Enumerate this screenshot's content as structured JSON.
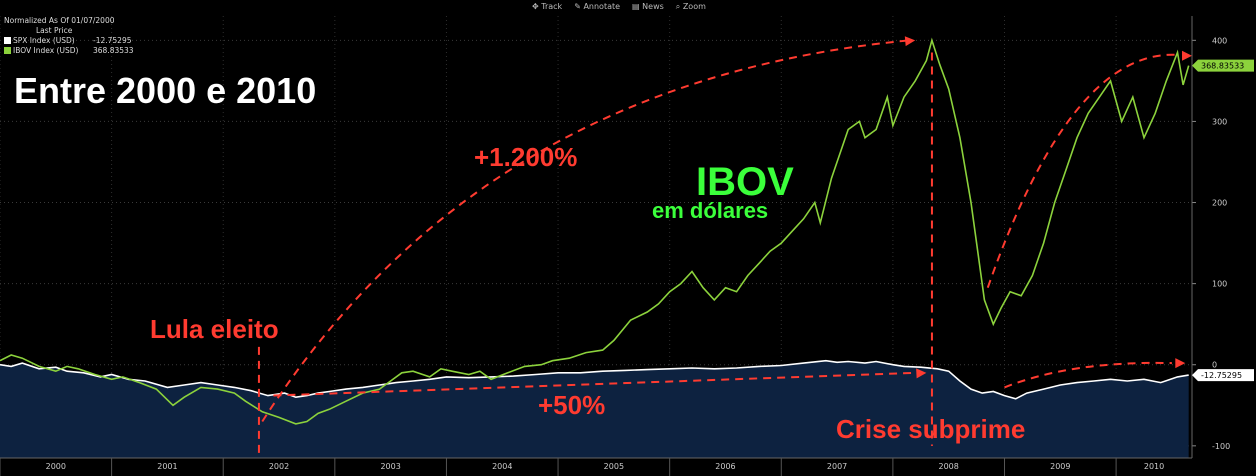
{
  "toolbar": {
    "track": "Track",
    "annotate": "Annotate",
    "news": "News",
    "zoom": "Zoom"
  },
  "legend": {
    "header1": "Normalized As Of 01/07/2000",
    "header2": "Last Price",
    "items": [
      {
        "name": "SPX Index (USD)",
        "value": "-12.75295",
        "color": "#ffffff"
      },
      {
        "name": "IBOV Index (USD)",
        "value": "368.83533",
        "color": "#8cd23c"
      }
    ]
  },
  "annotations": {
    "headline": "Entre 2000 e 2010",
    "ibov_gain": "+1.200%",
    "ibov_title": "IBOV",
    "ibov_subtitle": "em dólares",
    "lula": "Lula eleito",
    "spx_gain": "+50%",
    "crisis": "Crise subprime"
  },
  "colors": {
    "ibov": "#8cd23c",
    "spx": "#ffffff",
    "area": "#0d2240",
    "arrow": "#ff3b30"
  },
  "chart_data": {
    "type": "line",
    "ylim": [
      -115,
      430
    ],
    "xlim": [
      2000.0,
      2010.68
    ],
    "yticks": [
      -100,
      0,
      100,
      200,
      300,
      400
    ],
    "xticks": [
      "2000",
      "2001",
      "2002",
      "2003",
      "2004",
      "2005",
      "2006",
      "2007",
      "2008",
      "2009",
      "2010"
    ],
    "last_labels": {
      "ibov": "368.83533",
      "spx": "-12.75295"
    },
    "grid": true,
    "series": [
      {
        "name": "IBOV Index (USD)",
        "color": "#8cd23c",
        "points": [
          [
            2000.0,
            5
          ],
          [
            2000.1,
            12
          ],
          [
            2000.2,
            8
          ],
          [
            2000.35,
            -2
          ],
          [
            2000.5,
            -8
          ],
          [
            2000.6,
            -2
          ],
          [
            2000.7,
            -5
          ],
          [
            2000.85,
            -12
          ],
          [
            2001.0,
            -18
          ],
          [
            2001.1,
            -15
          ],
          [
            2001.25,
            -22
          ],
          [
            2001.4,
            -30
          ],
          [
            2001.55,
            -50
          ],
          [
            2001.65,
            -40
          ],
          [
            2001.8,
            -28
          ],
          [
            2001.95,
            -30
          ],
          [
            2002.1,
            -35
          ],
          [
            2002.2,
            -45
          ],
          [
            2002.35,
            -58
          ],
          [
            2002.5,
            -65
          ],
          [
            2002.65,
            -73
          ],
          [
            2002.75,
            -70
          ],
          [
            2002.85,
            -60
          ],
          [
            2002.95,
            -55
          ],
          [
            2003.1,
            -45
          ],
          [
            2003.25,
            -35
          ],
          [
            2003.4,
            -30
          ],
          [
            2003.5,
            -20
          ],
          [
            2003.6,
            -10
          ],
          [
            2003.7,
            -8
          ],
          [
            2003.85,
            -15
          ],
          [
            2003.95,
            -5
          ],
          [
            2004.05,
            -8
          ],
          [
            2004.2,
            -12
          ],
          [
            2004.3,
            -8
          ],
          [
            2004.4,
            -18
          ],
          [
            2004.55,
            -10
          ],
          [
            2004.7,
            -2
          ],
          [
            2004.85,
            0
          ],
          [
            2004.95,
            5
          ],
          [
            2005.1,
            8
          ],
          [
            2005.25,
            15
          ],
          [
            2005.4,
            18
          ],
          [
            2005.5,
            30
          ],
          [
            2005.65,
            55
          ],
          [
            2005.8,
            65
          ],
          [
            2005.9,
            75
          ],
          [
            2006.0,
            90
          ],
          [
            2006.1,
            100
          ],
          [
            2006.2,
            115
          ],
          [
            2006.3,
            95
          ],
          [
            2006.4,
            80
          ],
          [
            2006.5,
            95
          ],
          [
            2006.6,
            90
          ],
          [
            2006.7,
            110
          ],
          [
            2006.8,
            125
          ],
          [
            2006.9,
            140
          ],
          [
            2007.0,
            150
          ],
          [
            2007.1,
            165
          ],
          [
            2007.2,
            180
          ],
          [
            2007.3,
            200
          ],
          [
            2007.35,
            175
          ],
          [
            2007.45,
            230
          ],
          [
            2007.6,
            290
          ],
          [
            2007.7,
            300
          ],
          [
            2007.75,
            280
          ],
          [
            2007.85,
            290
          ],
          [
            2007.95,
            330
          ],
          [
            2008.0,
            295
          ],
          [
            2008.1,
            330
          ],
          [
            2008.2,
            350
          ],
          [
            2008.3,
            375
          ],
          [
            2008.35,
            400
          ],
          [
            2008.42,
            370
          ],
          [
            2008.5,
            340
          ],
          [
            2008.6,
            280
          ],
          [
            2008.7,
            200
          ],
          [
            2008.75,
            150
          ],
          [
            2008.82,
            80
          ],
          [
            2008.9,
            50
          ],
          [
            2008.97,
            70
          ],
          [
            2009.05,
            90
          ],
          [
            2009.15,
            85
          ],
          [
            2009.25,
            110
          ],
          [
            2009.35,
            150
          ],
          [
            2009.45,
            200
          ],
          [
            2009.55,
            240
          ],
          [
            2009.65,
            280
          ],
          [
            2009.75,
            310
          ],
          [
            2009.85,
            330
          ],
          [
            2009.95,
            350
          ],
          [
            2010.05,
            300
          ],
          [
            2010.15,
            330
          ],
          [
            2010.25,
            280
          ],
          [
            2010.35,
            310
          ],
          [
            2010.45,
            350
          ],
          [
            2010.55,
            385
          ],
          [
            2010.6,
            345
          ],
          [
            2010.65,
            368.84
          ]
        ]
      },
      {
        "name": "SPX Index (USD)",
        "color": "#ffffff",
        "points": [
          [
            2000.0,
            0
          ],
          [
            2000.1,
            -2
          ],
          [
            2000.2,
            2
          ],
          [
            2000.35,
            -5
          ],
          [
            2000.5,
            -3
          ],
          [
            2000.6,
            -8
          ],
          [
            2000.75,
            -10
          ],
          [
            2000.9,
            -15
          ],
          [
            2001.0,
            -12
          ],
          [
            2001.15,
            -18
          ],
          [
            2001.3,
            -20
          ],
          [
            2001.5,
            -28
          ],
          [
            2001.65,
            -25
          ],
          [
            2001.8,
            -22
          ],
          [
            2001.95,
            -25
          ],
          [
            2002.1,
            -28
          ],
          [
            2002.25,
            -32
          ],
          [
            2002.4,
            -38
          ],
          [
            2002.55,
            -35
          ],
          [
            2002.65,
            -40
          ],
          [
            2002.75,
            -38
          ],
          [
            2002.85,
            -35
          ],
          [
            2002.95,
            -33
          ],
          [
            2003.1,
            -30
          ],
          [
            2003.25,
            -28
          ],
          [
            2003.4,
            -25
          ],
          [
            2003.55,
            -22
          ],
          [
            2003.7,
            -20
          ],
          [
            2003.85,
            -18
          ],
          [
            2004.0,
            -15
          ],
          [
            2004.2,
            -16
          ],
          [
            2004.4,
            -15
          ],
          [
            2004.6,
            -14
          ],
          [
            2004.8,
            -12
          ],
          [
            2005.0,
            -10
          ],
          [
            2005.2,
            -10
          ],
          [
            2005.4,
            -8
          ],
          [
            2005.6,
            -7
          ],
          [
            2005.8,
            -6
          ],
          [
            2006.0,
            -5
          ],
          [
            2006.2,
            -4
          ],
          [
            2006.4,
            -5
          ],
          [
            2006.6,
            -4
          ],
          [
            2006.8,
            -2
          ],
          [
            2007.0,
            -1
          ],
          [
            2007.2,
            2
          ],
          [
            2007.4,
            5
          ],
          [
            2007.5,
            3
          ],
          [
            2007.6,
            4
          ],
          [
            2007.75,
            2
          ],
          [
            2007.85,
            4
          ],
          [
            2008.0,
            0
          ],
          [
            2008.1,
            -2
          ],
          [
            2008.25,
            -3
          ],
          [
            2008.4,
            -5
          ],
          [
            2008.5,
            -8
          ],
          [
            2008.6,
            -20
          ],
          [
            2008.7,
            -30
          ],
          [
            2008.8,
            -35
          ],
          [
            2008.9,
            -33
          ],
          [
            2009.0,
            -38
          ],
          [
            2009.1,
            -42
          ],
          [
            2009.2,
            -35
          ],
          [
            2009.35,
            -30
          ],
          [
            2009.5,
            -25
          ],
          [
            2009.65,
            -22
          ],
          [
            2009.8,
            -20
          ],
          [
            2009.95,
            -18
          ],
          [
            2010.1,
            -20
          ],
          [
            2010.25,
            -18
          ],
          [
            2010.4,
            -22
          ],
          [
            2010.55,
            -15
          ],
          [
            2010.65,
            -12.75
          ]
        ]
      }
    ]
  }
}
